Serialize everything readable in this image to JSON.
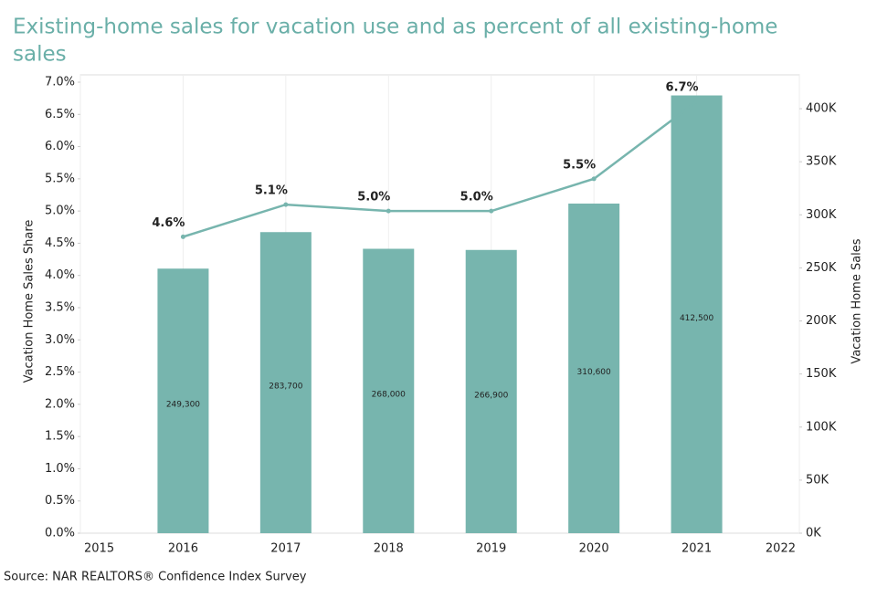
{
  "chart_data": {
    "type": "bar-line",
    "title": "Existing-home sales for vacation use and as percent of all existing-home sales",
    "source": "Source: NAR REALTORS® Confidence Index Survey",
    "y_label": "Vacation Home Sales Share",
    "y2_label": "Vacation Home Sales",
    "categories": [
      "2015",
      "2016",
      "2017",
      "2018",
      "2019",
      "2020",
      "2021",
      "2022"
    ],
    "series": [
      {
        "name": "Vacation Home Sales",
        "type": "bar",
        "axis": "y2",
        "color": "#77b5ae",
        "values": [
          null,
          249300,
          283700,
          268000,
          266900,
          310600,
          412500,
          null
        ],
        "value_labels": [
          null,
          "249,300",
          "283,700",
          "268,000",
          "266,900",
          "310,600",
          "412,500",
          null
        ]
      },
      {
        "name": "Vacation Home Sales Share",
        "type": "line",
        "axis": "y",
        "color": "#77b5ae",
        "values": [
          null,
          4.6,
          5.1,
          5.0,
          5.0,
          5.5,
          6.7,
          null
        ],
        "value_labels": [
          null,
          "4.6%",
          "5.1%",
          "5.0%",
          "5.0%",
          "5.5%",
          "6.7%",
          null
        ]
      }
    ],
    "ylim": [
      0,
      7
    ],
    "yticks": [
      {
        "value": 0,
        "label": "0.0%"
      },
      {
        "value": 0.5,
        "label": "0.5%"
      },
      {
        "value": 1,
        "label": "1.0%"
      },
      {
        "value": 1.5,
        "label": "1.5%"
      },
      {
        "value": 2,
        "label": "2.0%"
      },
      {
        "value": 2.5,
        "label": "2.5%"
      },
      {
        "value": 3,
        "label": "3.0%"
      },
      {
        "value": 3.5,
        "label": "3.5%"
      },
      {
        "value": 4,
        "label": "4.0%"
      },
      {
        "value": 4.5,
        "label": "4.5%"
      },
      {
        "value": 5,
        "label": "5.0%"
      },
      {
        "value": 5.5,
        "label": "5.5%"
      },
      {
        "value": 6,
        "label": "6.0%"
      },
      {
        "value": 6.5,
        "label": "6.5%"
      },
      {
        "value": 7,
        "label": "7.0%"
      }
    ],
    "y2lim": [
      0,
      425000
    ],
    "y2ticks": [
      {
        "value": 0,
        "label": "0K"
      },
      {
        "value": 50000,
        "label": "50K"
      },
      {
        "value": 100000,
        "label": "100K"
      },
      {
        "value": 150000,
        "label": "150K"
      },
      {
        "value": 200000,
        "label": "200K"
      },
      {
        "value": 250000,
        "label": "250K"
      },
      {
        "value": 300000,
        "label": "300K"
      },
      {
        "value": 350000,
        "label": "350K"
      },
      {
        "value": 400000,
        "label": "400K"
      }
    ]
  }
}
